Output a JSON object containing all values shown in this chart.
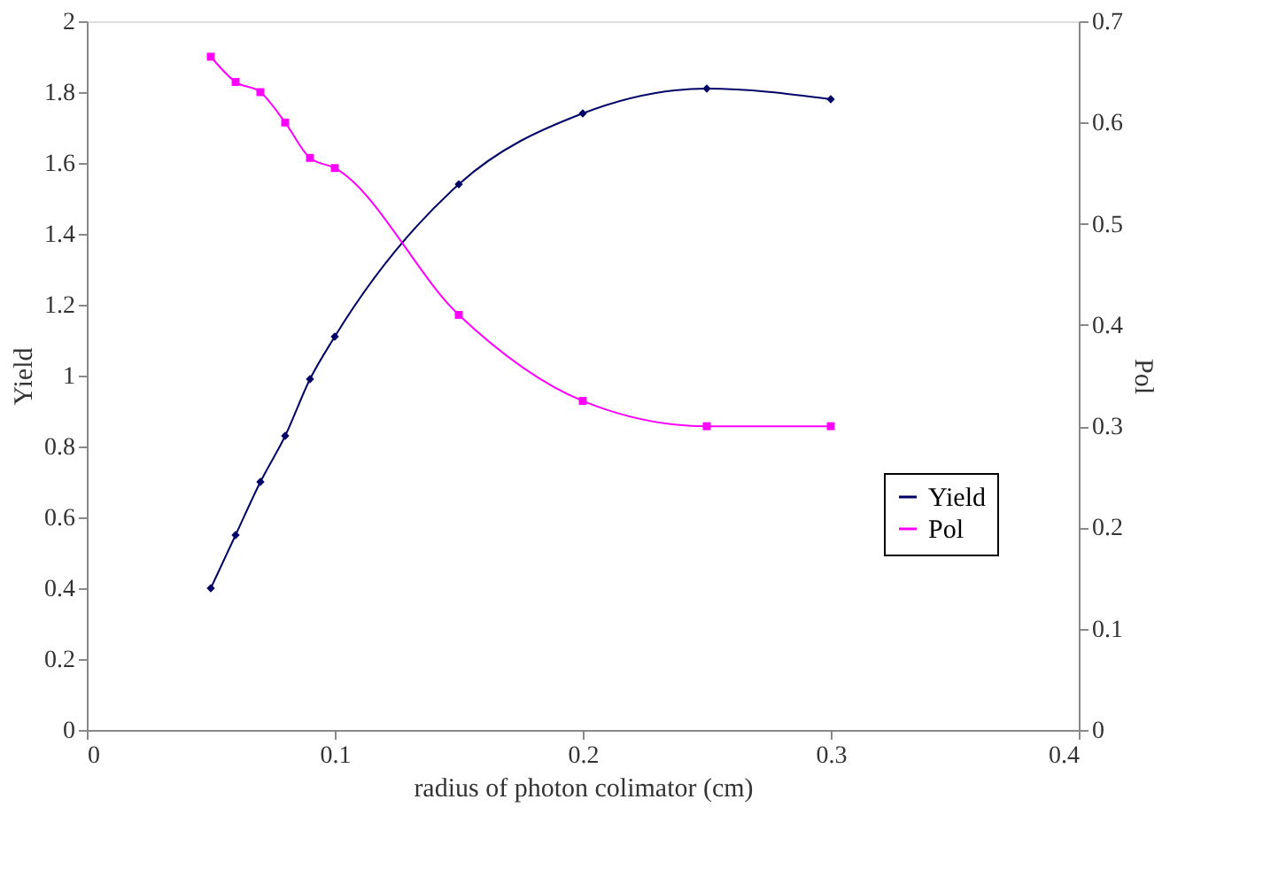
{
  "chart_data": {
    "type": "line",
    "xlabel": "radius of photon colimator (cm)",
    "ylabel": "Yield",
    "y2label": "Pol",
    "x": [
      0.05,
      0.06,
      0.07,
      0.08,
      0.09,
      0.1,
      0.15,
      0.2,
      0.25,
      0.3
    ],
    "series": [
      {
        "name": "Yield",
        "color": "#000066",
        "marker": "diamond",
        "values": [
          0.4,
          0.55,
          0.7,
          0.83,
          0.99,
          1.11,
          1.54,
          1.74,
          1.81,
          1.78
        ]
      },
      {
        "name": "Pol",
        "color": "#ff00ff",
        "marker": "square",
        "axis": "y2",
        "values": [
          0.665,
          0.64,
          0.63,
          0.6,
          0.565,
          0.555,
          0.41,
          0.325,
          0.3,
          0.3
        ]
      }
    ],
    "xlim": [
      0,
      0.4
    ],
    "xticks": [
      0,
      0.1,
      0.2,
      0.3,
      0.4
    ],
    "ylim": [
      0,
      2
    ],
    "yticks": [
      0,
      0.2,
      0.4,
      0.6,
      0.8,
      1,
      1.2,
      1.4,
      1.6,
      1.8,
      2
    ],
    "y2lim": [
      0,
      0.7
    ],
    "y2ticks": [
      0,
      0.1,
      0.2,
      0.3,
      0.4,
      0.5,
      0.6,
      0.7
    ],
    "grid": false,
    "legend": "right",
    "line_style": "solid"
  }
}
